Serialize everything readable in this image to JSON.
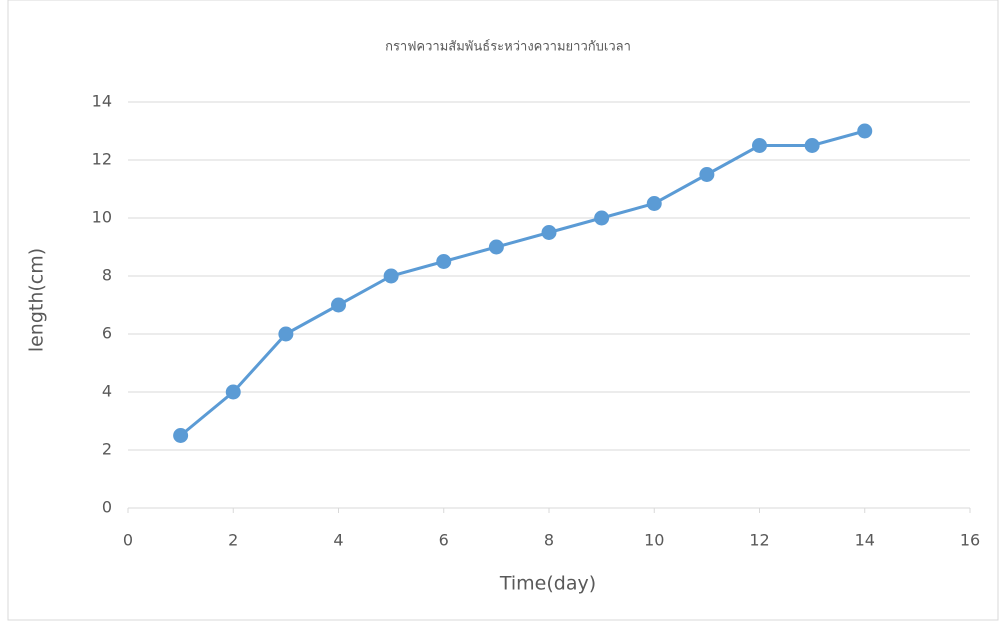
{
  "chart_data": {
    "type": "line",
    "title": "กราฟความสัมพันธ์ระหว่างความยาวกับเวลา",
    "x_label": "Time(day)",
    "y_label": "length(cm)",
    "x": [
      1,
      2,
      3,
      4,
      5,
      6,
      7,
      8,
      9,
      10,
      11,
      12,
      13,
      14
    ],
    "series": [
      {
        "color": "#5b9bd5",
        "values": [
          2.5,
          4,
          6,
          7,
          8,
          8.5,
          9,
          9.5,
          10,
          10.5,
          11.5,
          12.5,
          12.5,
          13
        ]
      }
    ],
    "xlim": [
      0,
      16
    ],
    "xticks": [
      0,
      2,
      4,
      6,
      8,
      10,
      12,
      14,
      16
    ],
    "ylim": [
      0,
      14
    ],
    "yticks": [
      0,
      2,
      4,
      6,
      8,
      10,
      12,
      14
    ],
    "grid": true
  }
}
